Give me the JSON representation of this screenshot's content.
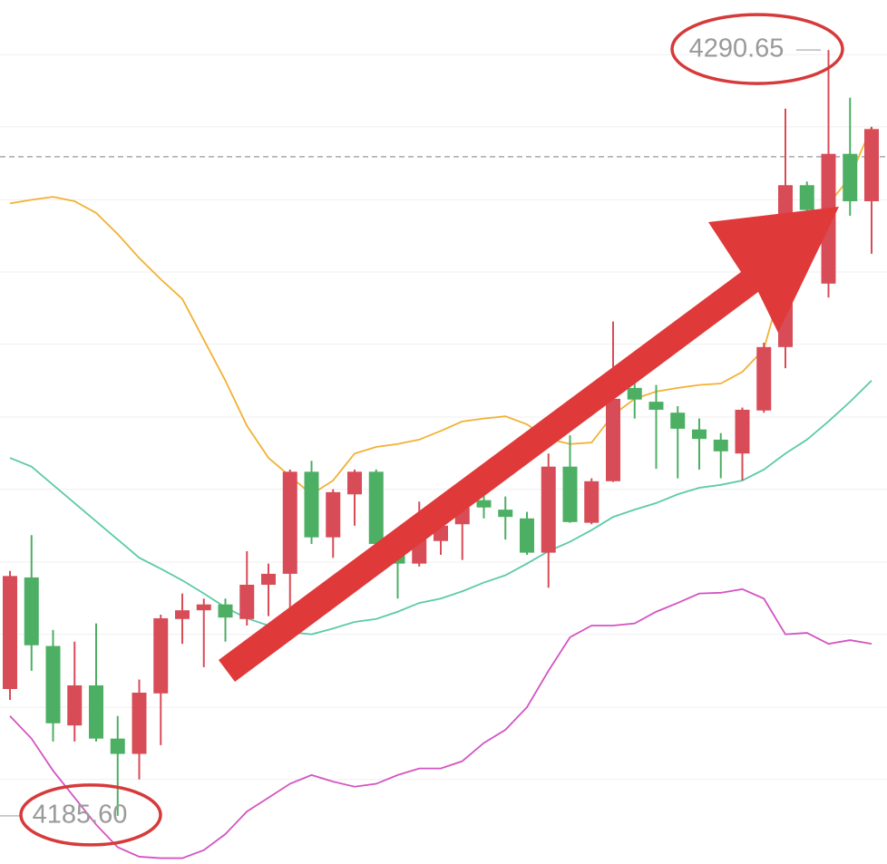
{
  "chart_data": {
    "type": "candlestick",
    "ylim": [
      4179.0,
      4297.5
    ],
    "gridlines": [
      4290.0,
      4280.1,
      4270.1,
      4260.2,
      4250.3,
      4240.3,
      4230.4,
      4220.4,
      4210.5,
      4200.5,
      4190.6
    ],
    "price_line": 4276.0,
    "up_color": "#d84c57",
    "down_color": "#4caf63",
    "open": [
      4203.0,
      4218.3,
      4208.9,
      4198.0,
      4203.5,
      4196.2,
      4194.1,
      4202.4,
      4212.6,
      4213.8,
      4214.6,
      4212.6,
      4217.3,
      4218.8,
      4232.8,
      4223.8,
      4229.7,
      4232.8,
      4222.9,
      4220.2,
      4223.3,
      4225.6,
      4228.9,
      4227.6,
      4226.4,
      4221.7,
      4233.5,
      4225.8,
      4231.5,
      4244.3,
      4242.4,
      4240.9,
      4238.6,
      4237.2,
      4235.3,
      4241.2,
      4249.9,
      4272.1,
      4258.6,
      4276.4,
      4269.9
    ],
    "high": [
      4219.2,
      4224.1,
      4211.1,
      4209.5,
      4212.0,
      4199.3,
      4204.3,
      4213.2,
      4216.1,
      4215.4,
      4215.4,
      4221.9,
      4220.2,
      4233.1,
      4234.3,
      4230.4,
      4233.1,
      4233.1,
      4223.5,
      4228.7,
      4226.6,
      4229.7,
      4230.4,
      4229.4,
      4227.3,
      4235.3,
      4237.8,
      4231.9,
      4253.4,
      4245.3,
      4244.7,
      4241.8,
      4240.1,
      4238.1,
      4241.6,
      4250.5,
      4282.6,
      4272.6,
      4290.65,
      4284.1,
      4280.1
    ],
    "low": [
      4201.5,
      4205.5,
      4195.8,
      4195.8,
      4195.8,
      4185.6,
      4190.6,
      4195.3,
      4209.2,
      4206.0,
      4209.5,
      4211.7,
      4213.0,
      4214.0,
      4222.9,
      4221.0,
      4225.4,
      4221.7,
      4215.4,
      4219.8,
      4221.4,
      4220.7,
      4226.4,
      4223.5,
      4221.4,
      4216.9,
      4225.8,
      4225.6,
      4231.4,
      4240.1,
      4233.2,
      4231.9,
      4233.1,
      4231.9,
      4231.6,
      4240.9,
      4247.0,
      4268.4,
      4256.7,
      4267.9,
      4262.7
    ],
    "close": [
      4218.5,
      4209.0,
      4198.3,
      4203.5,
      4196.2,
      4194.1,
      4202.5,
      4212.7,
      4213.8,
      4214.6,
      4212.8,
      4217.3,
      4218.8,
      4232.8,
      4223.8,
      4230.0,
      4232.8,
      4222.9,
      4220.2,
      4223.5,
      4225.4,
      4227.9,
      4227.9,
      4226.6,
      4221.7,
      4233.5,
      4225.9,
      4231.5,
      4242.8,
      4242.7,
      4241.3,
      4238.7,
      4237.3,
      4235.6,
      4241.3,
      4249.9,
      4272.1,
      4268.7,
      4276.4,
      4269.9,
      4279.8
    ],
    "lines": [
      {
        "color": "#f2b134",
        "values": [
          4269.6,
          4270.1,
          4270.5,
          4269.9,
          4268.3,
          4265.4,
          4262.1,
          4259.2,
          4256.5,
          4250.9,
          4245.3,
          4239.1,
          4234.7,
          4232.2,
          4229.7,
          4231.6,
          4235.3,
          4236.2,
          4236.6,
          4237.2,
          4238.4,
          4239.7,
          4240.1,
          4240.4,
          4239.3,
          4237.3,
          4236.6,
          4236.8,
          4240.6,
          4242.8,
          4243.8,
          4244.3,
          4244.7,
          4244.9,
          4246.5,
          4249.6,
          4260.2,
          4266.4,
          4269.5,
          4273.2,
          4280.1
        ]
      },
      {
        "color": "#5ccaa9",
        "values": [
          4234.7,
          4233.5,
          4231.0,
          4228.5,
          4226.0,
          4223.5,
          4221.0,
          4219.5,
          4217.9,
          4216.1,
          4214.2,
          4212.7,
          4211.7,
          4210.8,
          4210.5,
          4211.3,
          4212.2,
          4212.6,
          4213.6,
          4214.8,
          4215.4,
          4216.4,
          4217.6,
          4218.6,
          4220.2,
          4221.9,
          4223.2,
          4224.8,
          4226.6,
          4227.6,
          4228.5,
          4229.7,
          4230.6,
          4231.0,
          4231.6,
          4233.1,
          4235.3,
          4237.2,
          4239.7,
          4242.4,
          4245.3
        ]
      },
      {
        "color": "#d454c2",
        "values": [
          4199.3,
          4196.2,
          4191.8,
          4188.1,
          4184.4,
          4181.3,
          4180.0,
          4179.8,
          4179.8,
          4180.9,
          4183.1,
          4186.2,
          4188.1,
          4190.0,
          4191.2,
          4190.3,
          4189.6,
          4190.0,
          4191.2,
          4192.1,
          4192.1,
          4193.1,
          4195.6,
          4197.4,
          4200.5,
          4205.5,
          4210.1,
          4211.7,
          4211.7,
          4212.0,
          4213.6,
          4214.8,
          4216.1,
          4216.2,
          4216.7,
          4215.4,
          4210.5,
          4210.7,
          4209.2,
          4209.7,
          4209.2
        ]
      }
    ],
    "annotations": [
      {
        "value": 4290.65,
        "label": "4290.65"
      },
      {
        "value": 4185.6,
        "label": "4185.60"
      }
    ]
  }
}
